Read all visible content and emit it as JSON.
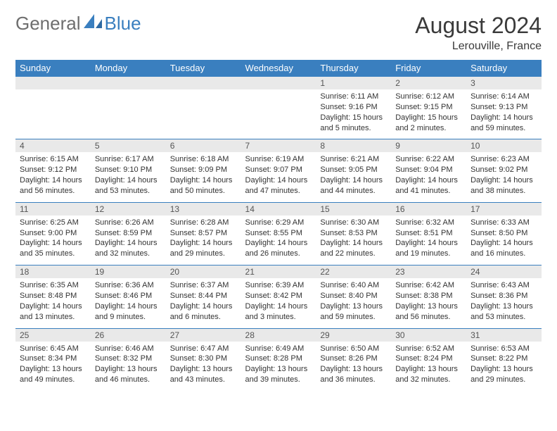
{
  "brand": {
    "part1": "General",
    "part2": "Blue",
    "color1": "#6e6e6e",
    "color2": "#3a7fbf"
  },
  "title": "August 2024",
  "location": "Lerouville, France",
  "colors": {
    "header_bg": "#3a7fbf",
    "header_fg": "#ffffff",
    "daynum_bg": "#e9e9e9",
    "border": "#3a7fbf",
    "text": "#333333"
  },
  "weekdays": [
    "Sunday",
    "Monday",
    "Tuesday",
    "Wednesday",
    "Thursday",
    "Friday",
    "Saturday"
  ],
  "weeks": [
    [
      {
        "blank": true
      },
      {
        "blank": true
      },
      {
        "blank": true
      },
      {
        "blank": true
      },
      {
        "day": "1",
        "sunrise": "Sunrise: 6:11 AM",
        "sunset": "Sunset: 9:16 PM",
        "daylight1": "Daylight: 15 hours",
        "daylight2": "and 5 minutes."
      },
      {
        "day": "2",
        "sunrise": "Sunrise: 6:12 AM",
        "sunset": "Sunset: 9:15 PM",
        "daylight1": "Daylight: 15 hours",
        "daylight2": "and 2 minutes."
      },
      {
        "day": "3",
        "sunrise": "Sunrise: 6:14 AM",
        "sunset": "Sunset: 9:13 PM",
        "daylight1": "Daylight: 14 hours",
        "daylight2": "and 59 minutes."
      }
    ],
    [
      {
        "day": "4",
        "sunrise": "Sunrise: 6:15 AM",
        "sunset": "Sunset: 9:12 PM",
        "daylight1": "Daylight: 14 hours",
        "daylight2": "and 56 minutes."
      },
      {
        "day": "5",
        "sunrise": "Sunrise: 6:17 AM",
        "sunset": "Sunset: 9:10 PM",
        "daylight1": "Daylight: 14 hours",
        "daylight2": "and 53 minutes."
      },
      {
        "day": "6",
        "sunrise": "Sunrise: 6:18 AM",
        "sunset": "Sunset: 9:09 PM",
        "daylight1": "Daylight: 14 hours",
        "daylight2": "and 50 minutes."
      },
      {
        "day": "7",
        "sunrise": "Sunrise: 6:19 AM",
        "sunset": "Sunset: 9:07 PM",
        "daylight1": "Daylight: 14 hours",
        "daylight2": "and 47 minutes."
      },
      {
        "day": "8",
        "sunrise": "Sunrise: 6:21 AM",
        "sunset": "Sunset: 9:05 PM",
        "daylight1": "Daylight: 14 hours",
        "daylight2": "and 44 minutes."
      },
      {
        "day": "9",
        "sunrise": "Sunrise: 6:22 AM",
        "sunset": "Sunset: 9:04 PM",
        "daylight1": "Daylight: 14 hours",
        "daylight2": "and 41 minutes."
      },
      {
        "day": "10",
        "sunrise": "Sunrise: 6:23 AM",
        "sunset": "Sunset: 9:02 PM",
        "daylight1": "Daylight: 14 hours",
        "daylight2": "and 38 minutes."
      }
    ],
    [
      {
        "day": "11",
        "sunrise": "Sunrise: 6:25 AM",
        "sunset": "Sunset: 9:00 PM",
        "daylight1": "Daylight: 14 hours",
        "daylight2": "and 35 minutes."
      },
      {
        "day": "12",
        "sunrise": "Sunrise: 6:26 AM",
        "sunset": "Sunset: 8:59 PM",
        "daylight1": "Daylight: 14 hours",
        "daylight2": "and 32 minutes."
      },
      {
        "day": "13",
        "sunrise": "Sunrise: 6:28 AM",
        "sunset": "Sunset: 8:57 PM",
        "daylight1": "Daylight: 14 hours",
        "daylight2": "and 29 minutes."
      },
      {
        "day": "14",
        "sunrise": "Sunrise: 6:29 AM",
        "sunset": "Sunset: 8:55 PM",
        "daylight1": "Daylight: 14 hours",
        "daylight2": "and 26 minutes."
      },
      {
        "day": "15",
        "sunrise": "Sunrise: 6:30 AM",
        "sunset": "Sunset: 8:53 PM",
        "daylight1": "Daylight: 14 hours",
        "daylight2": "and 22 minutes."
      },
      {
        "day": "16",
        "sunrise": "Sunrise: 6:32 AM",
        "sunset": "Sunset: 8:51 PM",
        "daylight1": "Daylight: 14 hours",
        "daylight2": "and 19 minutes."
      },
      {
        "day": "17",
        "sunrise": "Sunrise: 6:33 AM",
        "sunset": "Sunset: 8:50 PM",
        "daylight1": "Daylight: 14 hours",
        "daylight2": "and 16 minutes."
      }
    ],
    [
      {
        "day": "18",
        "sunrise": "Sunrise: 6:35 AM",
        "sunset": "Sunset: 8:48 PM",
        "daylight1": "Daylight: 14 hours",
        "daylight2": "and 13 minutes."
      },
      {
        "day": "19",
        "sunrise": "Sunrise: 6:36 AM",
        "sunset": "Sunset: 8:46 PM",
        "daylight1": "Daylight: 14 hours",
        "daylight2": "and 9 minutes."
      },
      {
        "day": "20",
        "sunrise": "Sunrise: 6:37 AM",
        "sunset": "Sunset: 8:44 PM",
        "daylight1": "Daylight: 14 hours",
        "daylight2": "and 6 minutes."
      },
      {
        "day": "21",
        "sunrise": "Sunrise: 6:39 AM",
        "sunset": "Sunset: 8:42 PM",
        "daylight1": "Daylight: 14 hours",
        "daylight2": "and 3 minutes."
      },
      {
        "day": "22",
        "sunrise": "Sunrise: 6:40 AM",
        "sunset": "Sunset: 8:40 PM",
        "daylight1": "Daylight: 13 hours",
        "daylight2": "and 59 minutes."
      },
      {
        "day": "23",
        "sunrise": "Sunrise: 6:42 AM",
        "sunset": "Sunset: 8:38 PM",
        "daylight1": "Daylight: 13 hours",
        "daylight2": "and 56 minutes."
      },
      {
        "day": "24",
        "sunrise": "Sunrise: 6:43 AM",
        "sunset": "Sunset: 8:36 PM",
        "daylight1": "Daylight: 13 hours",
        "daylight2": "and 53 minutes."
      }
    ],
    [
      {
        "day": "25",
        "sunrise": "Sunrise: 6:45 AM",
        "sunset": "Sunset: 8:34 PM",
        "daylight1": "Daylight: 13 hours",
        "daylight2": "and 49 minutes."
      },
      {
        "day": "26",
        "sunrise": "Sunrise: 6:46 AM",
        "sunset": "Sunset: 8:32 PM",
        "daylight1": "Daylight: 13 hours",
        "daylight2": "and 46 minutes."
      },
      {
        "day": "27",
        "sunrise": "Sunrise: 6:47 AM",
        "sunset": "Sunset: 8:30 PM",
        "daylight1": "Daylight: 13 hours",
        "daylight2": "and 43 minutes."
      },
      {
        "day": "28",
        "sunrise": "Sunrise: 6:49 AM",
        "sunset": "Sunset: 8:28 PM",
        "daylight1": "Daylight: 13 hours",
        "daylight2": "and 39 minutes."
      },
      {
        "day": "29",
        "sunrise": "Sunrise: 6:50 AM",
        "sunset": "Sunset: 8:26 PM",
        "daylight1": "Daylight: 13 hours",
        "daylight2": "and 36 minutes."
      },
      {
        "day": "30",
        "sunrise": "Sunrise: 6:52 AM",
        "sunset": "Sunset: 8:24 PM",
        "daylight1": "Daylight: 13 hours",
        "daylight2": "and 32 minutes."
      },
      {
        "day": "31",
        "sunrise": "Sunrise: 6:53 AM",
        "sunset": "Sunset: 8:22 PM",
        "daylight1": "Daylight: 13 hours",
        "daylight2": "and 29 minutes."
      }
    ]
  ]
}
